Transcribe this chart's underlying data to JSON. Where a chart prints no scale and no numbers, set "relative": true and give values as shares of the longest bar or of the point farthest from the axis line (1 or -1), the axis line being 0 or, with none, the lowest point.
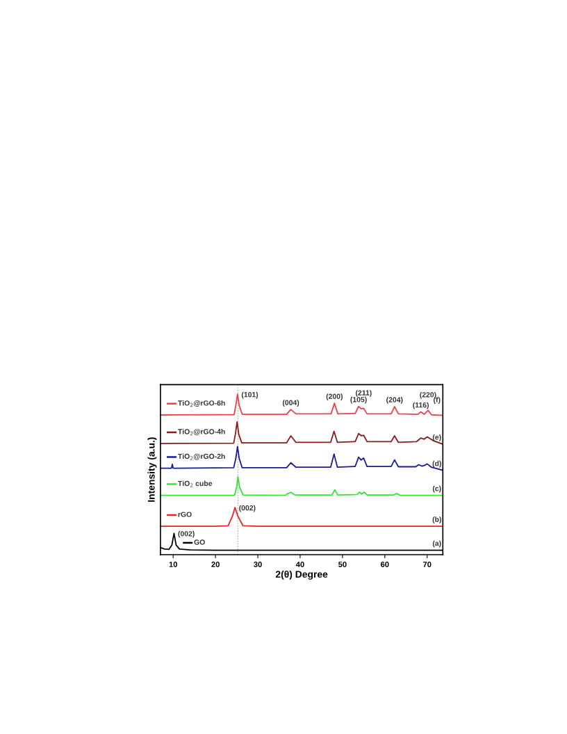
{
  "chart_data": {
    "type": "line",
    "relative": true,
    "xlabel": "2(θ) Degree",
    "ylabel": "Intensity (a.u.)",
    "xlim": [
      7,
      73.7
    ],
    "xticks": [
      10,
      20,
      30,
      40,
      50,
      60,
      70
    ],
    "grid": false,
    "legend": "top left",
    "marker": "none",
    "line_style": "solid",
    "series": [
      {
        "name": "GO",
        "color": "#000000",
        "x": [
          7,
          8,
          9,
          9.7,
          10.2,
          10.7,
          11.5,
          14,
          20,
          30,
          40,
          50,
          60,
          73.7
        ],
        "values": [
          0.044,
          0.035,
          0.033,
          0.06,
          0.133,
          0.06,
          0.035,
          0.03,
          0.028,
          0.028,
          0.028,
          0.028,
          0.028,
          0.028
        ]
      },
      {
        "name": "rGO",
        "color": "#ee2222",
        "x": [
          7,
          20,
          23,
          24,
          24.6,
          25.3,
          26.5,
          30,
          50,
          73.7
        ],
        "values": [
          0.177,
          0.177,
          0.18,
          0.24,
          0.294,
          0.24,
          0.18,
          0.177,
          0.177,
          0.177
        ]
      },
      {
        "name": "TiO$_{2}$ cube",
        "color": "#33e633",
        "x": [
          7,
          24.5,
          25,
          25.3,
          25.7,
          26.5,
          36.5,
          37,
          37.8,
          38.8,
          47.5,
          48.2,
          48.9,
          53.5,
          54,
          54.5,
          55.1,
          55.8,
          62,
          62.8,
          63.6,
          73.7
        ],
        "values": [
          0.37,
          0.37,
          0.42,
          0.486,
          0.42,
          0.372,
          0.37,
          0.38,
          0.389,
          0.372,
          0.372,
          0.404,
          0.372,
          0.375,
          0.39,
          0.378,
          0.39,
          0.372,
          0.372,
          0.381,
          0.37,
          0.37
        ]
      },
      {
        "name": "TiO$_{2}$@rGO-2h",
        "color": "#1a1a9a",
        "x": [
          7,
          9.6,
          9.8,
          10,
          24.3,
          24.8,
          25.2,
          25.6,
          26.3,
          36.8,
          37.8,
          39,
          47.2,
          48,
          48.8,
          53,
          53.8,
          54.4,
          55,
          55.8,
          61.5,
          62.3,
          63.2,
          67.3,
          68,
          68.8,
          69.4,
          70,
          71,
          73.7
        ],
        "values": [
          0.539,
          0.539,
          0.564,
          0.539,
          0.542,
          0.6,
          0.674,
          0.6,
          0.542,
          0.542,
          0.573,
          0.545,
          0.545,
          0.627,
          0.545,
          0.55,
          0.608,
          0.59,
          0.602,
          0.55,
          0.55,
          0.591,
          0.548,
          0.548,
          0.561,
          0.552,
          0.557,
          0.566,
          0.545,
          0.526
        ]
      },
      {
        "name": "TiO$_{2}$@rGO-4h",
        "color": "#8b1a1a",
        "x": [
          7,
          24.3,
          24.7,
          25.1,
          25.5,
          26.2,
          36.8,
          37.8,
          39,
          47.2,
          48,
          48.8,
          53,
          53.8,
          54.4,
          55,
          55.8,
          61.5,
          62.3,
          63.2,
          67.5,
          68.5,
          69.3,
          70,
          71.5,
          73.7
        ],
        "values": [
          0.693,
          0.695,
          0.75,
          0.828,
          0.75,
          0.697,
          0.697,
          0.741,
          0.7,
          0.7,
          0.769,
          0.7,
          0.705,
          0.755,
          0.742,
          0.744,
          0.705,
          0.705,
          0.741,
          0.7,
          0.705,
          0.727,
          0.72,
          0.734,
          0.71,
          0.689
        ]
      },
      {
        "name": "TiO$_{2}$@rGO-6h",
        "color": "#f0404a",
        "x": [
          7,
          24.4,
          24.8,
          25.2,
          25.6,
          26.3,
          36.8,
          37.8,
          39,
          47.3,
          48.1,
          48.9,
          53,
          53.8,
          54.4,
          55,
          55.8,
          61.5,
          62.3,
          63.2,
          67.8,
          68.5,
          69.3,
          70.2,
          71,
          73.7
        ],
        "values": [
          0.871,
          0.873,
          0.93,
          1.0,
          0.93,
          0.875,
          0.875,
          0.905,
          0.878,
          0.878,
          0.944,
          0.878,
          0.88,
          0.924,
          0.91,
          0.912,
          0.878,
          0.878,
          0.923,
          0.878,
          0.875,
          0.89,
          0.875,
          0.9,
          0.872,
          0.868
        ]
      }
    ],
    "ref_lines": [
      {
        "axis": "x",
        "value": 25.3,
        "label": null,
        "color": "#aaaaaa",
        "line_style": "dotted"
      }
    ],
    "annotations": [
      {
        "text": "(002)",
        "x": 10.2,
        "y": 0.133
      },
      {
        "text": "(002)",
        "x": 24.6,
        "y": 0.294
      },
      {
        "text": "(101)",
        "x": 25.2,
        "y": 1.0
      },
      {
        "text": "(004)",
        "x": 37.8,
        "y": 0.905
      },
      {
        "text": "(200)",
        "x": 48.1,
        "y": 0.944
      },
      {
        "text": "(105)",
        "x": 53.8,
        "y": 0.924
      },
      {
        "text": "(211)",
        "x": 55,
        "y": 0.912
      },
      {
        "text": "(204)",
        "x": 62.3,
        "y": 0.923
      },
      {
        "text": "(116)",
        "x": 68.5,
        "y": 0.89
      },
      {
        "text": "(220)",
        "x": 70.2,
        "y": 0.9
      },
      {
        "text": "(a)",
        "x": 72.3,
        "y": 0.028
      },
      {
        "text": "(b)",
        "x": 72.3,
        "y": 0.177
      },
      {
        "text": "(c)",
        "x": 72.3,
        "y": 0.37
      },
      {
        "text": "(d)",
        "x": 72.3,
        "y": 0.526
      },
      {
        "text": "(e)",
        "x": 72.3,
        "y": 0.689
      },
      {
        "text": "(f)",
        "x": 72.3,
        "y": 0.868
      }
    ]
  }
}
